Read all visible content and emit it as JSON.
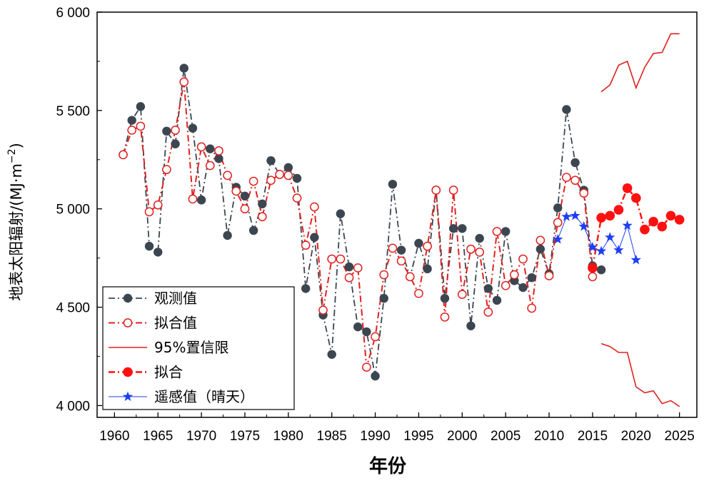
{
  "chart_data": {
    "type": "line",
    "xlabel": "年份",
    "ylabel": "地表太阳辐射/(MJ·m",
    "ylabel_sup": "−2",
    "ylabel_close": ")",
    "xlim": [
      1958,
      2027
    ],
    "ylim": [
      3940,
      6000
    ],
    "x_ticks": [
      1960,
      1965,
      1970,
      1975,
      1980,
      1985,
      1990,
      1995,
      2000,
      2005,
      2010,
      2015,
      2020,
      2025
    ],
    "y_ticks": [
      4000,
      4500,
      5000,
      5500,
      6000
    ],
    "y_tick_labels": [
      "4 000",
      "4 500",
      "5 000",
      "5 500",
      "6 000"
    ],
    "legend_position": "bottom-left",
    "series": [
      {
        "name": "观测值",
        "color": "#3c4650",
        "style": "dash-dot line, filled dark circles",
        "x": [
          1961,
          1962,
          1963,
          1964,
          1965,
          1966,
          1967,
          1968,
          1969,
          1970,
          1971,
          1972,
          1973,
          1974,
          1975,
          1976,
          1977,
          1978,
          1979,
          1980,
          1981,
          1982,
          1983,
          1984,
          1985,
          1986,
          1987,
          1988,
          1989,
          1990,
          1991,
          1992,
          1993,
          1994,
          1995,
          1996,
          1997,
          1998,
          1999,
          2000,
          2001,
          2002,
          2003,
          2004,
          2005,
          2006,
          2007,
          2008,
          2009,
          2010,
          2011,
          2012,
          2013,
          2014,
          2015,
          2016
        ],
        "y": [
          5275,
          5450,
          5520,
          4810,
          4780,
          5395,
          5330,
          5715,
          5410,
          5045,
          5305,
          5255,
          4865,
          5110,
          5065,
          4890,
          5025,
          5245,
          5175,
          5210,
          5155,
          4595,
          4855,
          4460,
          4260,
          4975,
          4705,
          4400,
          4375,
          4150,
          4545,
          5125,
          4790,
          4655,
          4825,
          4695,
          5095,
          4545,
          4900,
          4900,
          4405,
          4850,
          4595,
          4535,
          4885,
          4635,
          4600,
          4650,
          4795,
          4670,
          5005,
          5505,
          5235,
          5095,
          4710,
          4690
        ]
      },
      {
        "name": "拟合值",
        "color": "#e0211f",
        "style": "dash-dot line, open red circles",
        "x": [
          1961,
          1962,
          1963,
          1964,
          1965,
          1966,
          1967,
          1968,
          1969,
          1970,
          1971,
          1972,
          1973,
          1974,
          1975,
          1976,
          1977,
          1978,
          1979,
          1980,
          1981,
          1982,
          1983,
          1984,
          1985,
          1986,
          1987,
          1988,
          1989,
          1990,
          1991,
          1992,
          1993,
          1994,
          1995,
          1996,
          1997,
          1998,
          1999,
          2000,
          2001,
          2002,
          2003,
          2004,
          2005,
          2006,
          2007,
          2008,
          2009,
          2010,
          2011,
          2012,
          2013,
          2014,
          2015
        ],
        "y": [
          5275,
          5400,
          5420,
          4985,
          5020,
          5200,
          5400,
          5645,
          5050,
          5315,
          5220,
          5295,
          5170,
          5090,
          5000,
          5140,
          4960,
          5145,
          5175,
          5170,
          5055,
          4815,
          5010,
          4485,
          4745,
          4745,
          4650,
          4700,
          4195,
          4350,
          4665,
          4800,
          4735,
          4655,
          4570,
          4810,
          5095,
          4450,
          5095,
          4565,
          4795,
          4780,
          4475,
          4885,
          4610,
          4665,
          4745,
          4495,
          4840,
          4660,
          4930,
          5160,
          5145,
          5080,
          4655
        ]
      },
      {
        "name": "95%置信限",
        "color": "#e0211f",
        "style": "thin solid line (upper and lower bounds)",
        "x": [
          2016,
          2017,
          2018,
          2019,
          2020,
          2021,
          2022,
          2023,
          2024,
          2025
        ],
        "upper": [
          5595,
          5630,
          5730,
          5750,
          5615,
          5720,
          5790,
          5795,
          5890,
          5890
        ],
        "lower": [
          4315,
          4300,
          4270,
          4270,
          4095,
          4065,
          4075,
          4010,
          4025,
          3995
        ]
      },
      {
        "name": "拟合",
        "color": "#ff1010",
        "style": "dash-dot line, large filled red circles",
        "x": [
          2015,
          2016,
          2017,
          2018,
          2019,
          2020,
          2021,
          2022,
          2023,
          2024,
          2025
        ],
        "y": [
          4700,
          4955,
          4965,
          4995,
          5105,
          5055,
          4895,
          4935,
          4910,
          4965,
          4945
        ]
      },
      {
        "name": "遥感值（晴天）",
        "color": "#1b3ff5",
        "style": "thin solid line, blue stars",
        "x": [
          2011,
          2012,
          2013,
          2014,
          2015,
          2016,
          2017,
          2018,
          2019,
          2020
        ],
        "y": [
          4845,
          4960,
          4965,
          4910,
          4805,
          4785,
          4855,
          4790,
          4915,
          4740
        ]
      }
    ]
  }
}
